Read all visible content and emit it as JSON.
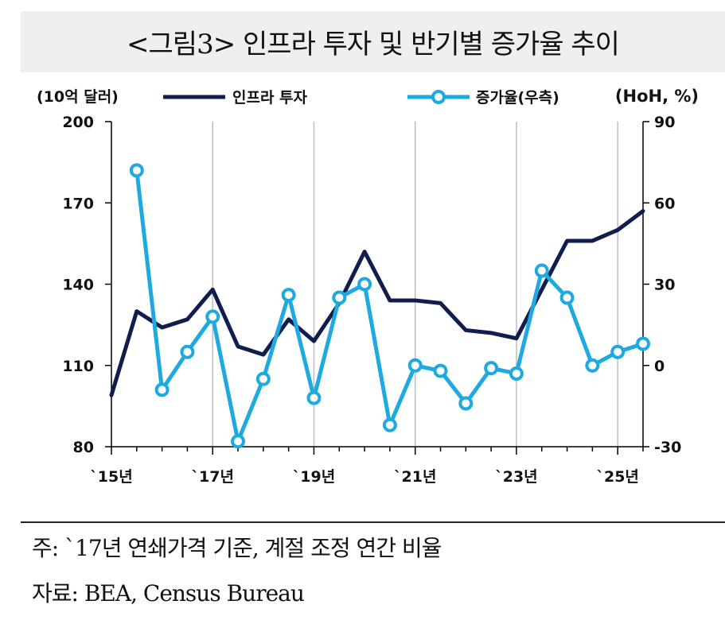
{
  "title": "<그림3> 인프라 투자 및 반기별 증가율 추이",
  "footnote": "주: `17년 연쇄가격 기준, 계절 조정 연간 비율",
  "source": "자료: BEA, Census Bureau",
  "colors": {
    "investment": "#0f1e4f",
    "growth": "#1ea9e0",
    "grid": "#bdbdbd",
    "axis": "#000000"
  },
  "chart_data": {
    "type": "line",
    "title": "<그림3> 인프라 투자 및 반기별 증가율 추이",
    "left_axis_unit": "(10억 달러)",
    "right_axis_unit": "(HoH, %)",
    "left_ylim": [
      80,
      200
    ],
    "right_ylim": [
      -30,
      90
    ],
    "left_ticks": [
      "200",
      "170",
      "140",
      "110",
      "80"
    ],
    "right_ticks": [
      "90",
      "60",
      "30",
      "0",
      "-30"
    ],
    "x_tick_labels": [
      "`15년",
      "`17년",
      "`19년",
      "`21년",
      "`23년",
      "`25년"
    ],
    "x_tick_indices": [
      0,
      4,
      8,
      12,
      16,
      20
    ],
    "grid": "vertical",
    "legend_position": "top",
    "series": [
      {
        "name": "인프라 투자",
        "axis": "left",
        "values": [
          99,
          130,
          124,
          127,
          138,
          117,
          114,
          127,
          119,
          133,
          152,
          134,
          134,
          133,
          123,
          122,
          120,
          138,
          156,
          156,
          160,
          167
        ]
      },
      {
        "name": "증가율(우측)",
        "axis": "right",
        "markers": true,
        "values": [
          null,
          72,
          -9,
          5,
          18,
          -28,
          -5,
          26,
          -12,
          25,
          30,
          -22,
          0,
          -2,
          -14,
          -1,
          -3,
          35,
          25,
          0,
          5,
          8
        ]
      }
    ]
  }
}
